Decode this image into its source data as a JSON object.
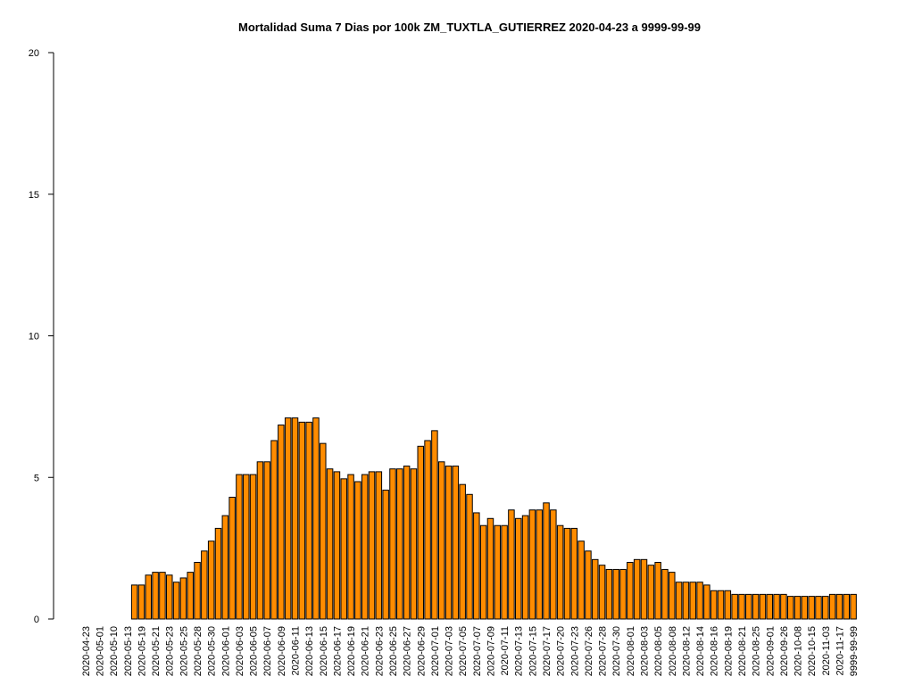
{
  "chart_data": {
    "type": "bar",
    "title": "Mortalidad Suma 7 Dias por 100k ZM_TUXTLA_GUTIERREZ 2020-04-23 a 9999-99-99",
    "color": "#ff8c00",
    "ylim": [
      0,
      20
    ],
    "yticks": [
      0,
      5,
      10,
      15,
      20
    ],
    "categories": [
      "2020-04-23",
      null,
      "2020-05-01",
      null,
      "2020-05-10",
      null,
      "2020-05-13",
      null,
      "2020-05-19",
      null,
      "2020-05-21",
      null,
      "2020-05-23",
      null,
      "2020-05-25",
      null,
      "2020-05-28",
      null,
      "2020-05-30",
      null,
      "2020-06-01",
      null,
      "2020-06-03",
      null,
      "2020-06-05",
      null,
      "2020-06-07",
      null,
      "2020-06-09",
      null,
      "2020-06-11",
      null,
      "2020-06-13",
      null,
      "2020-06-15",
      null,
      "2020-06-17",
      null,
      "2020-06-19",
      null,
      "2020-06-21",
      null,
      "2020-06-23",
      null,
      "2020-06-25",
      null,
      "2020-06-27",
      null,
      "2020-06-29",
      null,
      "2020-07-01",
      null,
      "2020-07-03",
      null,
      "2020-07-05",
      null,
      "2020-07-07",
      null,
      "2020-07-09",
      null,
      "2020-07-11",
      null,
      "2020-07-13",
      null,
      "2020-07-15",
      null,
      "2020-07-17",
      null,
      "2020-07-20",
      null,
      "2020-07-23",
      null,
      "2020-07-26",
      null,
      "2020-07-28",
      null,
      "2020-07-30",
      null,
      "2020-08-01",
      null,
      "2020-08-03",
      null,
      "2020-08-05",
      null,
      "2020-08-08",
      null,
      "2020-08-12",
      null,
      "2020-08-14",
      null,
      "2020-08-16",
      null,
      "2020-08-19",
      null,
      "2020-08-21",
      null,
      "2020-08-25",
      null,
      "2020-09-01",
      null,
      "2020-09-26",
      null,
      "2020-10-08",
      null,
      "2020-10-15",
      null,
      "2020-11-03",
      null,
      "2020-11-17",
      null,
      "9999-99-99"
    ],
    "values": [
      0,
      0,
      0,
      0,
      0,
      0,
      0,
      1.2,
      1.2,
      1.55,
      1.65,
      1.65,
      1.55,
      1.3,
      1.45,
      1.65,
      2.0,
      2.4,
      2.75,
      3.2,
      3.65,
      4.3,
      5.1,
      5.1,
      5.1,
      5.55,
      5.55,
      6.3,
      6.85,
      7.1,
      7.1,
      6.95,
      6.95,
      7.1,
      6.2,
      5.3,
      5.2,
      4.95,
      5.1,
      4.85,
      5.1,
      5.2,
      5.2,
      4.55,
      5.3,
      5.3,
      5.4,
      5.3,
      6.1,
      6.3,
      6.65,
      5.55,
      5.4,
      5.4,
      4.75,
      4.4,
      3.75,
      3.3,
      3.55,
      3.3,
      3.3,
      3.85,
      3.55,
      3.65,
      3.85,
      3.85,
      4.1,
      3.85,
      3.3,
      3.2,
      3.2,
      2.75,
      2.4,
      2.1,
      1.9,
      1.75,
      1.75,
      1.75,
      2.0,
      2.1,
      2.1,
      1.9,
      2.0,
      1.75,
      1.65,
      1.3,
      1.3,
      1.3,
      1.3,
      1.2,
      1.0,
      1.0,
      1.0,
      0.87,
      0.87,
      0.87,
      0.87,
      0.87,
      0.87,
      0.87,
      0.87,
      0.8,
      0.8,
      0.8,
      0.8,
      0.8,
      0.8,
      0.87,
      0.87,
      0.87,
      0.87
    ]
  }
}
